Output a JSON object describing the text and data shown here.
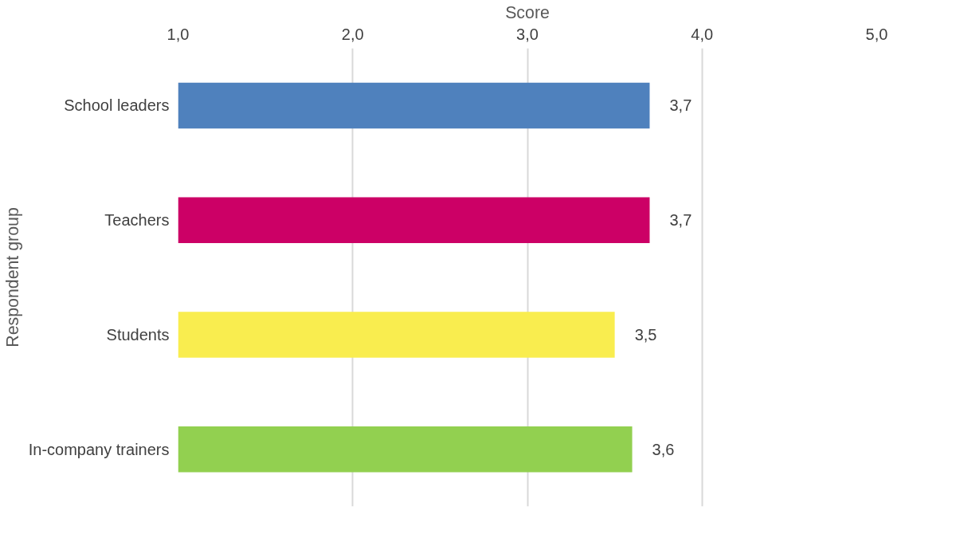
{
  "chart_data": {
    "type": "bar",
    "orientation": "horizontal",
    "xlabel": "Score",
    "ylabel": "Respondent group",
    "categories": [
      "School leaders",
      "Teachers",
      "Students",
      "In-company trainers"
    ],
    "values": [
      3.7,
      3.7,
      3.5,
      3.6
    ],
    "colors": [
      "#4f81bd",
      "#cc0066",
      "#f9ed4f",
      "#92d050"
    ],
    "value_labels": [
      "3,7",
      "3,7",
      "3,5",
      "3,6"
    ],
    "xlim": [
      1,
      5
    ],
    "xticks": [
      {
        "value": 1,
        "label": "1,0"
      },
      {
        "value": 2,
        "label": "2,0"
      },
      {
        "value": 3,
        "label": "3,0"
      },
      {
        "value": 4,
        "label": "4,0"
      },
      {
        "value": 5,
        "label": "5,0"
      }
    ],
    "grid": "x"
  }
}
